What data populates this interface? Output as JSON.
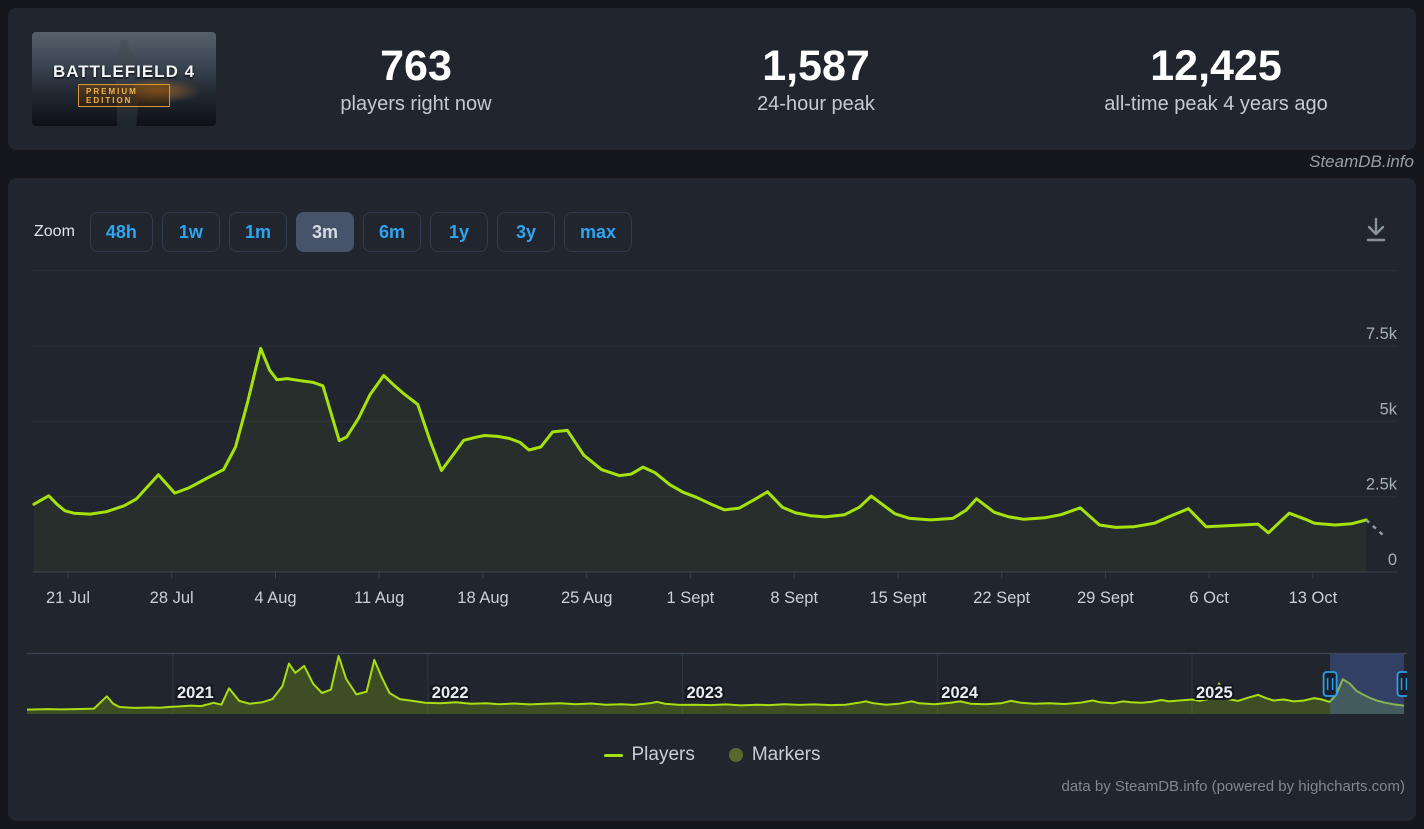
{
  "header": {
    "game": {
      "title": "BATTLEFIELD 4",
      "edition": "PREMIUM EDITION"
    },
    "stats": [
      {
        "value": "763",
        "label": "players right now"
      },
      {
        "value": "1,587",
        "label": "24-hour peak"
      },
      {
        "value": "12,425",
        "label": "all-time peak 4 years ago"
      }
    ]
  },
  "watermark": "SteamDB.info",
  "toolbar": {
    "zoom_label": "Zoom",
    "ranges": [
      {
        "label": "48h",
        "active": false
      },
      {
        "label": "1w",
        "active": false
      },
      {
        "label": "1m",
        "active": false
      },
      {
        "label": "3m",
        "active": true
      },
      {
        "label": "6m",
        "active": false
      },
      {
        "label": "1y",
        "active": false
      },
      {
        "label": "3y",
        "active": false
      },
      {
        "label": "max",
        "active": false
      }
    ],
    "download_icon": "download-icon"
  },
  "chart_data": {
    "type": "area",
    "title": "Battlefield 4 concurrent players (3 month view)",
    "main": {
      "series": [
        {
          "name": "Players",
          "color": "#a6e20a",
          "points": [
            [
              0.7,
              2250
            ],
            [
              1.7,
              2530
            ],
            [
              2.3,
              2230
            ],
            [
              2.8,
              2030
            ],
            [
              3.4,
              1950
            ],
            [
              4.5,
              1920
            ],
            [
              5.6,
              2000
            ],
            [
              6.8,
              2200
            ],
            [
              7.6,
              2420
            ],
            [
              9.1,
              3230
            ],
            [
              10.2,
              2620
            ],
            [
              11.2,
              2800
            ],
            [
              12.4,
              3120
            ],
            [
              13.5,
              3400
            ],
            [
              14.3,
              4150
            ],
            [
              15.1,
              5600
            ],
            [
              16.0,
              7420
            ],
            [
              16.6,
              6700
            ],
            [
              17.1,
              6380
            ],
            [
              17.8,
              6420
            ],
            [
              18.7,
              6350
            ],
            [
              19.5,
              6300
            ],
            [
              20.2,
              6180
            ],
            [
              21.3,
              4360
            ],
            [
              21.8,
              4480
            ],
            [
              22.6,
              5100
            ],
            [
              23.4,
              5900
            ],
            [
              24.3,
              6520
            ],
            [
              25.0,
              6200
            ],
            [
              25.7,
              5900
            ],
            [
              26.6,
              5560
            ],
            [
              27.4,
              4400
            ],
            [
              28.2,
              3370
            ],
            [
              29.0,
              3900
            ],
            [
              29.7,
              4370
            ],
            [
              30.5,
              4470
            ],
            [
              31.1,
              4530
            ],
            [
              32.0,
              4500
            ],
            [
              32.8,
              4430
            ],
            [
              33.5,
              4300
            ],
            [
              34.1,
              4050
            ],
            [
              34.9,
              4150
            ],
            [
              35.7,
              4650
            ],
            [
              36.7,
              4700
            ],
            [
              37.8,
              3880
            ],
            [
              39.0,
              3400
            ],
            [
              40.2,
              3200
            ],
            [
              41.0,
              3250
            ],
            [
              41.8,
              3480
            ],
            [
              42.6,
              3300
            ],
            [
              43.6,
              2900
            ],
            [
              44.5,
              2650
            ],
            [
              45.4,
              2480
            ],
            [
              46.4,
              2250
            ],
            [
              47.3,
              2060
            ],
            [
              48.3,
              2120
            ],
            [
              49.3,
              2400
            ],
            [
              50.2,
              2660
            ],
            [
              51.2,
              2150
            ],
            [
              52.1,
              1960
            ],
            [
              53.1,
              1870
            ],
            [
              54.1,
              1830
            ],
            [
              55.4,
              1900
            ],
            [
              56.4,
              2150
            ],
            [
              57.2,
              2520
            ],
            [
              58.2,
              2150
            ],
            [
              58.8,
              1930
            ],
            [
              59.8,
              1780
            ],
            [
              61.2,
              1730
            ],
            [
              62.7,
              1780
            ],
            [
              63.6,
              2050
            ],
            [
              64.3,
              2430
            ],
            [
              65.5,
              1980
            ],
            [
              66.5,
              1830
            ],
            [
              67.5,
              1750
            ],
            [
              68.9,
              1800
            ],
            [
              70.0,
              1900
            ],
            [
              71.3,
              2130
            ],
            [
              72.6,
              1560
            ],
            [
              73.7,
              1480
            ],
            [
              74.9,
              1500
            ],
            [
              76.3,
              1620
            ],
            [
              77.3,
              1840
            ],
            [
              78.6,
              2100
            ],
            [
              79.8,
              1500
            ],
            [
              81.0,
              1530
            ],
            [
              82.2,
              1560
            ],
            [
              83.3,
              1590
            ],
            [
              84.0,
              1300
            ],
            [
              85.4,
              1950
            ],
            [
              86.5,
              1750
            ],
            [
              87.1,
              1620
            ],
            [
              88.5,
              1560
            ],
            [
              89.6,
              1600
            ],
            [
              90.6,
              1730
            ]
          ]
        }
      ],
      "dashed_tail": {
        "color": "#969ca3",
        "points": [
          [
            90.6,
            1730
          ],
          [
            91.9,
            1150
          ]
        ]
      },
      "xticks": [
        {
          "day": 3,
          "label": "21 Jul"
        },
        {
          "day": 10,
          "label": "28 Jul"
        },
        {
          "day": 17,
          "label": "4 Aug"
        },
        {
          "day": 24,
          "label": "11 Aug"
        },
        {
          "day": 31,
          "label": "18 Aug"
        },
        {
          "day": 38,
          "label": "25 Aug"
        },
        {
          "day": 45,
          "label": "1 Sept"
        },
        {
          "day": 52,
          "label": "8 Sept"
        },
        {
          "day": 59,
          "label": "15 Sept"
        },
        {
          "day": 66,
          "label": "22 Sept"
        },
        {
          "day": 73,
          "label": "29 Sept"
        },
        {
          "day": 80,
          "label": "6 Oct"
        },
        {
          "day": 87,
          "label": "13 Oct"
        }
      ],
      "yticks": [
        {
          "value": 7500,
          "label": "7.5k"
        },
        {
          "value": 5000,
          "label": "5k"
        },
        {
          "value": 2500,
          "label": "2.5k"
        },
        {
          "value": 0,
          "label": "0"
        }
      ],
      "grid_values": [
        10000,
        7500,
        5000,
        2500,
        0
      ],
      "ylim": [
        0,
        9700
      ],
      "grid": true
    },
    "navigator": {
      "year_labels": [
        {
          "year": 2021,
          "label": "2021"
        },
        {
          "year": 2022,
          "label": "2022"
        },
        {
          "year": 2023,
          "label": "2023"
        },
        {
          "year": 2024,
          "label": "2024"
        },
        {
          "year": 2025,
          "label": "2025"
        }
      ],
      "selection": {
        "from_year": 2025.542,
        "to_year": 2025.832
      },
      "marker": {
        "year": 2025.106,
        "value": 5800,
        "shape": "triangle-up",
        "color": "#b8d432"
      },
      "series_color": "#a9dd12",
      "points": [
        [
          2020.427,
          950
        ],
        [
          2020.51,
          1050
        ],
        [
          2020.56,
          980
        ],
        [
          2020.62,
          1060
        ],
        [
          2020.69,
          1150
        ],
        [
          2020.74,
          3800
        ],
        [
          2020.765,
          2200
        ],
        [
          2020.79,
          1500
        ],
        [
          2020.85,
          1300
        ],
        [
          2020.91,
          1400
        ],
        [
          2020.95,
          1350
        ],
        [
          2020.98,
          1500
        ],
        [
          2021.02,
          1600
        ],
        [
          2021.07,
          1800
        ],
        [
          2021.11,
          1700
        ],
        [
          2021.16,
          2400
        ],
        [
          2021.19,
          2000
        ],
        [
          2021.22,
          5500
        ],
        [
          2021.26,
          2800
        ],
        [
          2021.3,
          2200
        ],
        [
          2021.35,
          2500
        ],
        [
          2021.39,
          3200
        ],
        [
          2021.43,
          6000
        ],
        [
          2021.455,
          10800
        ],
        [
          2021.48,
          8800
        ],
        [
          2021.515,
          10300
        ],
        [
          2021.55,
          6500
        ],
        [
          2021.585,
          4500
        ],
        [
          2021.62,
          5200
        ],
        [
          2021.65,
          12425
        ],
        [
          2021.68,
          7500
        ],
        [
          2021.72,
          4200
        ],
        [
          2021.76,
          4800
        ],
        [
          2021.79,
          11600
        ],
        [
          2021.82,
          7800
        ],
        [
          2021.85,
          4500
        ],
        [
          2021.89,
          3200
        ],
        [
          2021.94,
          2800
        ],
        [
          2021.99,
          2400
        ],
        [
          2022.05,
          2300
        ],
        [
          2022.11,
          2500
        ],
        [
          2022.17,
          2200
        ],
        [
          2022.23,
          2300
        ],
        [
          2022.28,
          2100
        ],
        [
          2022.34,
          2250
        ],
        [
          2022.4,
          2050
        ],
        [
          2022.46,
          2200
        ],
        [
          2022.52,
          2300
        ],
        [
          2022.58,
          2100
        ],
        [
          2022.64,
          2250
        ],
        [
          2022.7,
          2000
        ],
        [
          2022.76,
          2100
        ],
        [
          2022.81,
          1950
        ],
        [
          2022.87,
          2300
        ],
        [
          2022.9,
          2600
        ],
        [
          2022.93,
          2200
        ],
        [
          2022.99,
          1950
        ],
        [
          2023.05,
          2000
        ],
        [
          2023.11,
          1900
        ],
        [
          2023.17,
          2050
        ],
        [
          2023.23,
          1850
        ],
        [
          2023.29,
          2000
        ],
        [
          2023.34,
          1900
        ],
        [
          2023.4,
          2100
        ],
        [
          2023.46,
          1950
        ],
        [
          2023.52,
          2050
        ],
        [
          2023.58,
          1900
        ],
        [
          2023.64,
          2000
        ],
        [
          2023.69,
          2400
        ],
        [
          2023.72,
          2700
        ],
        [
          2023.75,
          2300
        ],
        [
          2023.8,
          2000
        ],
        [
          2023.85,
          2200
        ],
        [
          2023.9,
          2700
        ],
        [
          2023.93,
          2300
        ],
        [
          2023.99,
          2100
        ],
        [
          2024.05,
          2400
        ],
        [
          2024.09,
          2700
        ],
        [
          2024.13,
          2200
        ],
        [
          2024.19,
          2100
        ],
        [
          2024.25,
          2300
        ],
        [
          2024.29,
          2800
        ],
        [
          2024.33,
          2400
        ],
        [
          2024.38,
          2200
        ],
        [
          2024.44,
          2300
        ],
        [
          2024.5,
          2150
        ],
        [
          2024.56,
          2400
        ],
        [
          2024.61,
          2900
        ],
        [
          2024.64,
          2500
        ],
        [
          2024.69,
          2300
        ],
        [
          2024.73,
          2700
        ],
        [
          2024.76,
          2500
        ],
        [
          2024.8,
          2400
        ],
        [
          2024.84,
          2600
        ],
        [
          2024.88,
          3000
        ],
        [
          2024.91,
          2700
        ],
        [
          2024.95,
          2900
        ],
        [
          2025.0,
          3100
        ],
        [
          2025.03,
          2800
        ],
        [
          2025.07,
          3300
        ],
        [
          2025.11,
          3800
        ],
        [
          2025.14,
          3200
        ],
        [
          2025.18,
          2800
        ],
        [
          2025.22,
          3500
        ],
        [
          2025.26,
          4100
        ],
        [
          2025.29,
          3400
        ],
        [
          2025.32,
          2900
        ],
        [
          2025.36,
          3100
        ],
        [
          2025.4,
          2700
        ],
        [
          2025.44,
          2900
        ],
        [
          2025.48,
          3400
        ],
        [
          2025.51,
          3100
        ],
        [
          2025.54,
          2600
        ],
        [
          2025.565,
          4000
        ],
        [
          2025.592,
          7450
        ],
        [
          2025.62,
          6500
        ],
        [
          2025.645,
          5000
        ],
        [
          2025.67,
          4200
        ],
        [
          2025.7,
          3400
        ],
        [
          2025.73,
          2800
        ],
        [
          2025.76,
          2400
        ],
        [
          2025.79,
          2100
        ],
        [
          2025.816,
          1900
        ],
        [
          2025.832,
          1800
        ]
      ]
    }
  },
  "legend": [
    {
      "label": "Players",
      "color": "#a6e20a",
      "type": "line"
    },
    {
      "label": "Markers",
      "color": "#56682c",
      "type": "circle"
    }
  ],
  "credits": "data by SteamDB.info (powered by highcharts.com)"
}
